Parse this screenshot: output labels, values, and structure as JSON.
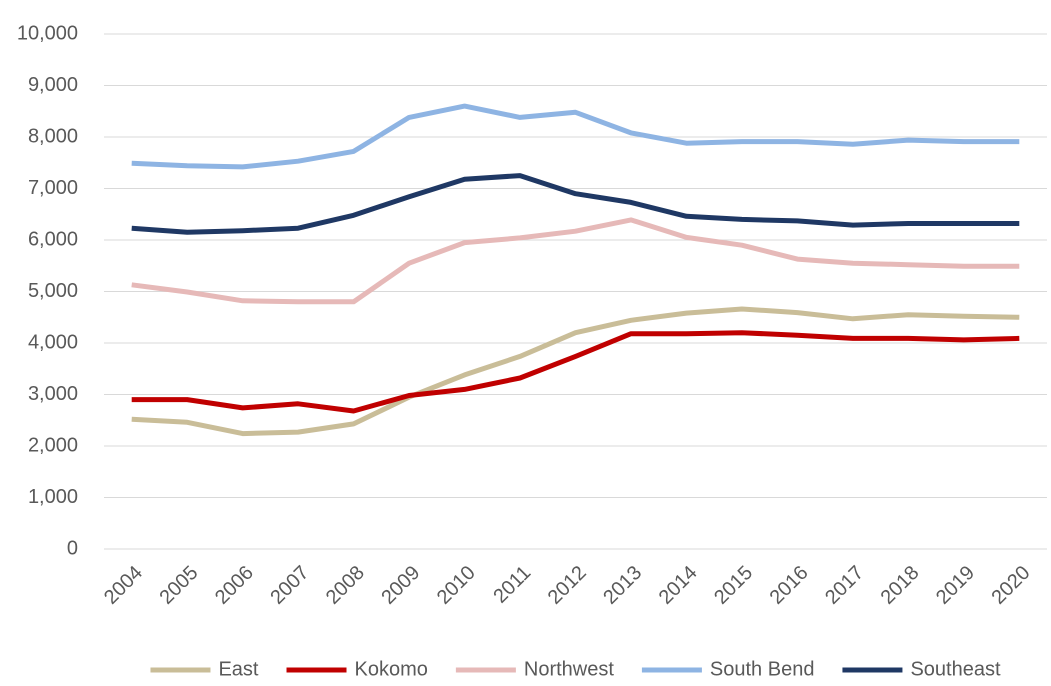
{
  "chart_data": {
    "type": "line",
    "categories": [
      "2004",
      "2005",
      "2006",
      "2007",
      "2008",
      "2009",
      "2010",
      "2011",
      "2012",
      "2013",
      "2014",
      "2015",
      "2016",
      "2017",
      "2018",
      "2019",
      "2020"
    ],
    "series": [
      {
        "name": "East",
        "color": "#c9bd98",
        "values": [
          2520,
          2460,
          2240,
          2270,
          2430,
          2950,
          3380,
          3740,
          4200,
          4440,
          4580,
          4660,
          4590,
          4470,
          4550,
          4520,
          4500
        ]
      },
      {
        "name": "Kokomo",
        "color": "#c00000",
        "values": [
          2900,
          2900,
          2740,
          2820,
          2680,
          2980,
          3100,
          3320,
          3740,
          4180,
          4180,
          4200,
          4150,
          4090,
          4090,
          4060,
          4090
        ]
      },
      {
        "name": "Northwest",
        "color": "#e6b9b8",
        "values": [
          5130,
          4990,
          4820,
          4800,
          4800,
          5550,
          5950,
          6040,
          6170,
          6390,
          6050,
          5900,
          5630,
          5550,
          5520,
          5490,
          5490
        ]
      },
      {
        "name": "South Bend",
        "color": "#8eb4e3",
        "values": [
          7490,
          7440,
          7420,
          7530,
          7720,
          8380,
          8600,
          8380,
          8480,
          8080,
          7880,
          7910,
          7910,
          7860,
          7940,
          7910,
          7910
        ]
      },
      {
        "name": "Southeast",
        "color": "#1f3864",
        "values": [
          6230,
          6150,
          6180,
          6230,
          6480,
          6840,
          7180,
          7250,
          6900,
          6730,
          6460,
          6400,
          6370,
          6290,
          6320,
          6320,
          6320
        ]
      }
    ],
    "ylim": [
      0,
      10000
    ],
    "yticks": [
      0,
      {
        "value": 1000,
        "label": "1,000"
      },
      {
        "value": 2000,
        "label": "2,000"
      },
      {
        "value": 3000,
        "label": "3,000"
      },
      {
        "value": 4000,
        "label": "4,000"
      },
      {
        "value": 5000,
        "label": "5,000"
      },
      {
        "value": 6000,
        "label": "6,000"
      },
      {
        "value": 7000,
        "label": "7,000"
      },
      {
        "value": 8000,
        "label": "8,000"
      },
      {
        "value": 9000,
        "label": "9,000"
      },
      {
        "value": 10000,
        "label": "10,000"
      }
    ],
    "grid": true,
    "legend": "bottom"
  }
}
